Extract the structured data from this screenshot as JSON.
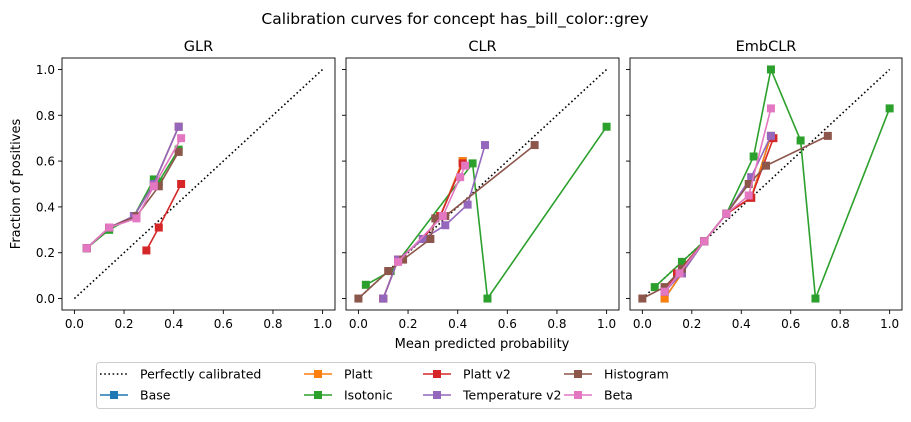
{
  "figure": {
    "suptitle": "Calibration curves for concept has_bill_color::grey",
    "xlabel": "Mean predicted probability",
    "ylabel": "Fraction of positives"
  },
  "colors": {
    "Perfectly calibrated": "#000000",
    "Base": "#1f77b4",
    "Platt": "#ff7f0e",
    "Isotonic": "#2ca02c",
    "Platt v2": "#d62728",
    "Temperature v2": "#9467bd",
    "Histogram": "#8c564b",
    "Beta": "#e377c2"
  },
  "legend": [
    {
      "label": "Perfectly calibrated",
      "style": "dotted"
    },
    {
      "label": "Base",
      "style": "marker"
    },
    {
      "label": "Platt",
      "style": "marker"
    },
    {
      "label": "Isotonic",
      "style": "marker"
    },
    {
      "label": "Platt v2",
      "style": "marker"
    },
    {
      "label": "Temperature v2",
      "style": "marker"
    },
    {
      "label": "Histogram",
      "style": "marker"
    },
    {
      "label": "Beta",
      "style": "marker"
    }
  ],
  "chart_data": [
    {
      "type": "line",
      "title": "GLR",
      "xlim": [
        -0.05,
        1.05
      ],
      "ylim": [
        -0.05,
        1.05
      ],
      "xticks": [
        "0.0",
        "0.2",
        "0.4",
        "0.6",
        "0.8",
        "1.0"
      ],
      "yticks": [
        "0.0",
        "0.2",
        "0.4",
        "0.6",
        "0.8",
        "1.0"
      ],
      "series": [
        {
          "name": "Base",
          "x": [
            0.05,
            0.14,
            0.24,
            0.32,
            0.42
          ],
          "y": [
            0.22,
            0.31,
            0.36,
            0.5,
            0.75
          ]
        },
        {
          "name": "Platt",
          "x": [
            0.05,
            0.14,
            0.24,
            0.32,
            0.42
          ],
          "y": [
            0.22,
            0.31,
            0.36,
            0.5,
            0.75
          ]
        },
        {
          "name": "Isotonic",
          "x": [
            0.05,
            0.14,
            0.24,
            0.32,
            0.34,
            0.42
          ],
          "y": [
            0.22,
            0.3,
            0.36,
            0.52,
            0.51,
            0.65
          ]
        },
        {
          "name": "Platt v2",
          "x": [
            0.29,
            0.34,
            0.43
          ],
          "y": [
            0.21,
            0.31,
            0.5
          ]
        },
        {
          "name": "Temperature v2",
          "x": [
            0.05,
            0.14,
            0.24,
            0.32,
            0.42
          ],
          "y": [
            0.22,
            0.31,
            0.36,
            0.5,
            0.75
          ]
        },
        {
          "name": "Histogram",
          "x": [
            0.05,
            0.14,
            0.25,
            0.34,
            0.42
          ],
          "y": [
            0.22,
            0.31,
            0.36,
            0.49,
            0.64
          ]
        },
        {
          "name": "Beta",
          "x": [
            0.05,
            0.14,
            0.25,
            0.32,
            0.43
          ],
          "y": [
            0.22,
            0.31,
            0.35,
            0.49,
            0.7
          ]
        }
      ]
    },
    {
      "type": "line",
      "title": "CLR",
      "xlim": [
        -0.05,
        1.05
      ],
      "ylim": [
        -0.05,
        1.05
      ],
      "xticks": [
        "0.0",
        "0.2",
        "0.4",
        "0.6",
        "0.8",
        "1.0"
      ],
      "yticks": [],
      "series": [
        {
          "name": "Base",
          "x": [
            0.1,
            0.16,
            0.26,
            0.33,
            0.42
          ],
          "y": [
            0.0,
            0.17,
            0.26,
            0.36,
            0.6
          ]
        },
        {
          "name": "Platt",
          "x": [
            0.1,
            0.16,
            0.26,
            0.33,
            0.42
          ],
          "y": [
            0.0,
            0.17,
            0.26,
            0.36,
            0.6
          ]
        },
        {
          "name": "Isotonic",
          "x": [
            0.03,
            0.13,
            0.46,
            0.52,
            1.0
          ],
          "y": [
            0.06,
            0.12,
            0.59,
            0.0,
            0.75
          ]
        },
        {
          "name": "Platt v2",
          "x": [
            0.1,
            0.16,
            0.26,
            0.33,
            0.42
          ],
          "y": [
            0.0,
            0.17,
            0.26,
            0.36,
            0.59
          ]
        },
        {
          "name": "Temperature v2",
          "x": [
            0.1,
            0.16,
            0.26,
            0.35,
            0.44,
            0.51
          ],
          "y": [
            0.0,
            0.17,
            0.26,
            0.32,
            0.41,
            0.67
          ]
        },
        {
          "name": "Histogram",
          "x": [
            0.0,
            0.12,
            0.18,
            0.29,
            0.31,
            0.35,
            0.71
          ],
          "y": [
            0.0,
            0.12,
            0.17,
            0.26,
            0.35,
            0.36,
            0.67
          ]
        },
        {
          "name": "Beta",
          "x": [
            0.16,
            0.34,
            0.41,
            0.43
          ],
          "y": [
            0.16,
            0.36,
            0.53,
            0.58
          ]
        }
      ]
    },
    {
      "type": "line",
      "title": "EmbCLR",
      "xlim": [
        -0.05,
        1.05
      ],
      "ylim": [
        -0.05,
        1.05
      ],
      "xticks": [
        "0.0",
        "0.2",
        "0.4",
        "0.6",
        "0.8",
        "1.0"
      ],
      "yticks": [],
      "series": [
        {
          "name": "Base",
          "x": [
            0.09,
            0.16,
            0.25,
            0.34,
            0.44,
            0.52
          ],
          "y": [
            0.0,
            0.11,
            0.25,
            0.37,
            0.44,
            0.71
          ]
        },
        {
          "name": "Platt",
          "x": [
            0.09,
            0.16,
            0.25,
            0.34,
            0.44,
            0.52
          ],
          "y": [
            0.0,
            0.11,
            0.25,
            0.37,
            0.44,
            0.71
          ]
        },
        {
          "name": "Isotonic",
          "x": [
            0.05,
            0.16,
            0.25,
            0.34,
            0.45,
            0.52,
            0.64,
            0.7,
            1.0
          ],
          "y": [
            0.05,
            0.16,
            0.25,
            0.37,
            0.62,
            1.0,
            0.69,
            0.0,
            0.83
          ]
        },
        {
          "name": "Platt v2",
          "x": [
            0.09,
            0.14,
            0.25,
            0.34,
            0.44,
            0.53
          ],
          "y": [
            0.03,
            0.11,
            0.25,
            0.37,
            0.44,
            0.7
          ]
        },
        {
          "name": "Temperature v2",
          "x": [
            0.09,
            0.16,
            0.25,
            0.34,
            0.44,
            0.52
          ],
          "y": [
            0.03,
            0.11,
            0.25,
            0.37,
            0.53,
            0.71
          ]
        },
        {
          "name": "Histogram",
          "x": [
            0.0,
            0.09,
            0.16,
            0.25,
            0.34,
            0.43,
            0.5,
            0.75
          ],
          "y": [
            0.0,
            0.05,
            0.13,
            0.25,
            0.37,
            0.5,
            0.58,
            0.71
          ]
        },
        {
          "name": "Beta",
          "x": [
            0.09,
            0.15,
            0.25,
            0.34,
            0.43,
            0.52
          ],
          "y": [
            0.03,
            0.11,
            0.25,
            0.37,
            0.45,
            0.83
          ]
        }
      ]
    }
  ]
}
